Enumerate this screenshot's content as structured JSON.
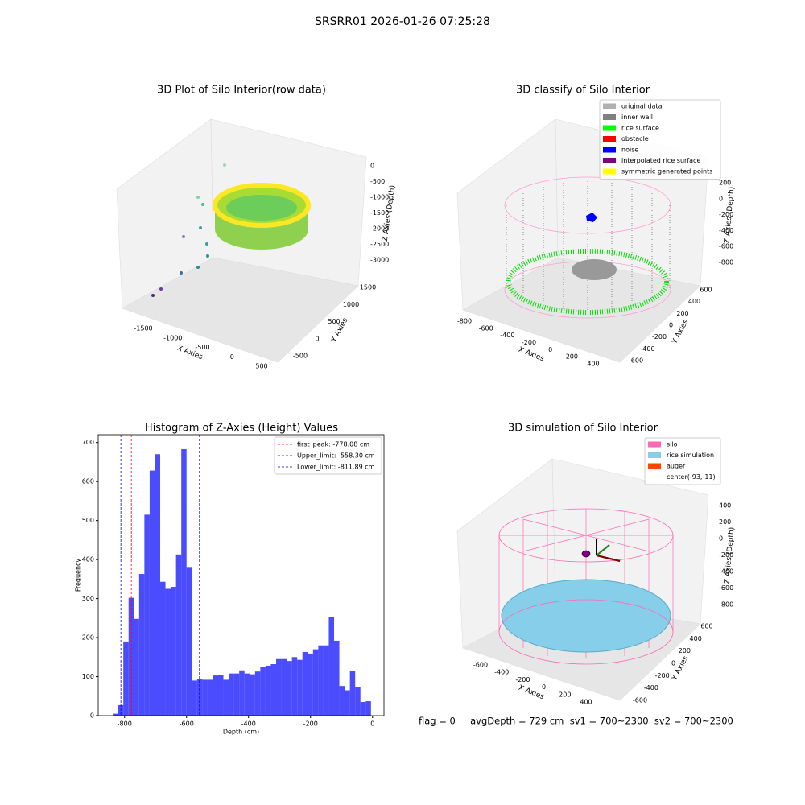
{
  "title": "SRSRR01 2026-01-26 07:25:28",
  "footer": "flag = 0     avgDepth = 729 cm  sv1 = 700~2300  sv2 = 700~2300",
  "chart_data": [
    {
      "type": "scatter3d",
      "title": "3D Plot of Silo Interior(row data)",
      "xlabel": "X Axies",
      "ylabel": "Y Axies",
      "zlabel": "Z Axies (Depth)",
      "xticks": [
        -1500,
        -1000,
        -500,
        0,
        500
      ],
      "yticks": [
        -500,
        0,
        500,
        1000,
        1500
      ],
      "zticks": [
        0,
        -500,
        -1000,
        -1500,
        -2000,
        -2500,
        -3000
      ]
    },
    {
      "type": "scatter3d",
      "title": "3D classify of Silo Interior",
      "xlabel": "X Axies",
      "ylabel": "Y Axies",
      "zlabel": "Z Axies (Depth)",
      "xticks": [
        -800,
        -600,
        -400,
        -200,
        0,
        200,
        400
      ],
      "yticks": [
        -600,
        -400,
        -200,
        0,
        200,
        400,
        600
      ],
      "zticks": [
        200,
        0,
        -200,
        -400,
        -600,
        -800
      ],
      "legend": [
        {
          "name": "original data",
          "color": "#b0b0b0"
        },
        {
          "name": "inner wall",
          "color": "#808080"
        },
        {
          "name": "rice surface",
          "color": "#00ff00"
        },
        {
          "name": "obstacle",
          "color": "#ff0000"
        },
        {
          "name": "noise",
          "color": "#0000ff"
        },
        {
          "name": "interpolated rice surface",
          "color": "#800080"
        },
        {
          "name": "symmetric generated points",
          "color": "#ffff00"
        }
      ]
    },
    {
      "type": "histogram",
      "title": "Histogram of Z-Axies (Height) Values",
      "xlabel": "Depth (cm)",
      "ylabel": "Frequency",
      "color": "#0000ff",
      "alpha": 0.7,
      "bins": [
        -838,
        -821,
        -804,
        -787,
        -770,
        -753,
        -736,
        -719,
        -702,
        -685,
        -668,
        -651,
        -634,
        -617,
        -600,
        -583,
        -566,
        -549,
        -532,
        -515,
        -498,
        -481,
        -464,
        -447,
        -430,
        -413,
        -396,
        -379,
        -362,
        -345,
        -328,
        -311,
        -294,
        -277,
        -260,
        -243,
        -226,
        -209,
        -192,
        -175,
        -158,
        -141,
        -124,
        -107,
        -90,
        -73,
        -56,
        -39,
        -22,
        -5
      ],
      "values": [
        5,
        27,
        190,
        302,
        248,
        363,
        515,
        628,
        670,
        343,
        325,
        330,
        413,
        683,
        381,
        90,
        93,
        92,
        92,
        103,
        105,
        92,
        108,
        108,
        116,
        108,
        106,
        113,
        124,
        128,
        132,
        145,
        145,
        140,
        150,
        143,
        163,
        159,
        170,
        180,
        180,
        253,
        192,
        76,
        65,
        114,
        74,
        35,
        37
      ],
      "xlim": [
        -885,
        37
      ],
      "ylim": [
        0,
        720
      ],
      "xticks": [
        -800,
        -600,
        -400,
        -200,
        0
      ],
      "yticks": [
        0,
        100,
        200,
        300,
        400,
        500,
        600,
        700
      ],
      "lines": [
        {
          "name": "first_peak",
          "value": -778.08,
          "label": "first_peak: -778.08 cm",
          "color": "#ff0000"
        },
        {
          "name": "Upper_limit",
          "value": -558.3,
          "label": "Upper_limit: -558.30 cm",
          "color": "#0000ff"
        },
        {
          "name": "Lower_limit",
          "value": -811.89,
          "label": "Lower_limit: -811.89 cm",
          "color": "#0000ff"
        }
      ],
      "legend_loc": "upper right"
    },
    {
      "type": "surface3d",
      "title": "3D simulation of Silo Interior",
      "xlabel": "X Axies",
      "ylabel": "Y Axies",
      "zlabel": "Z Axies (Depth)",
      "xticks": [
        -600,
        -400,
        -200,
        0,
        200,
        400
      ],
      "yticks": [
        -600,
        -400,
        -200,
        0,
        200,
        400,
        600
      ],
      "zticks": [
        400,
        200,
        0,
        -200,
        -400,
        -600,
        -800
      ],
      "legend": [
        {
          "name": "silo",
          "color": "#ff69b4"
        },
        {
          "name": "rice simulation",
          "color": "#87ceeb"
        },
        {
          "name": "auger",
          "color": "#ff4500"
        },
        {
          "name": "center(-93,-11)"
        }
      ]
    }
  ]
}
